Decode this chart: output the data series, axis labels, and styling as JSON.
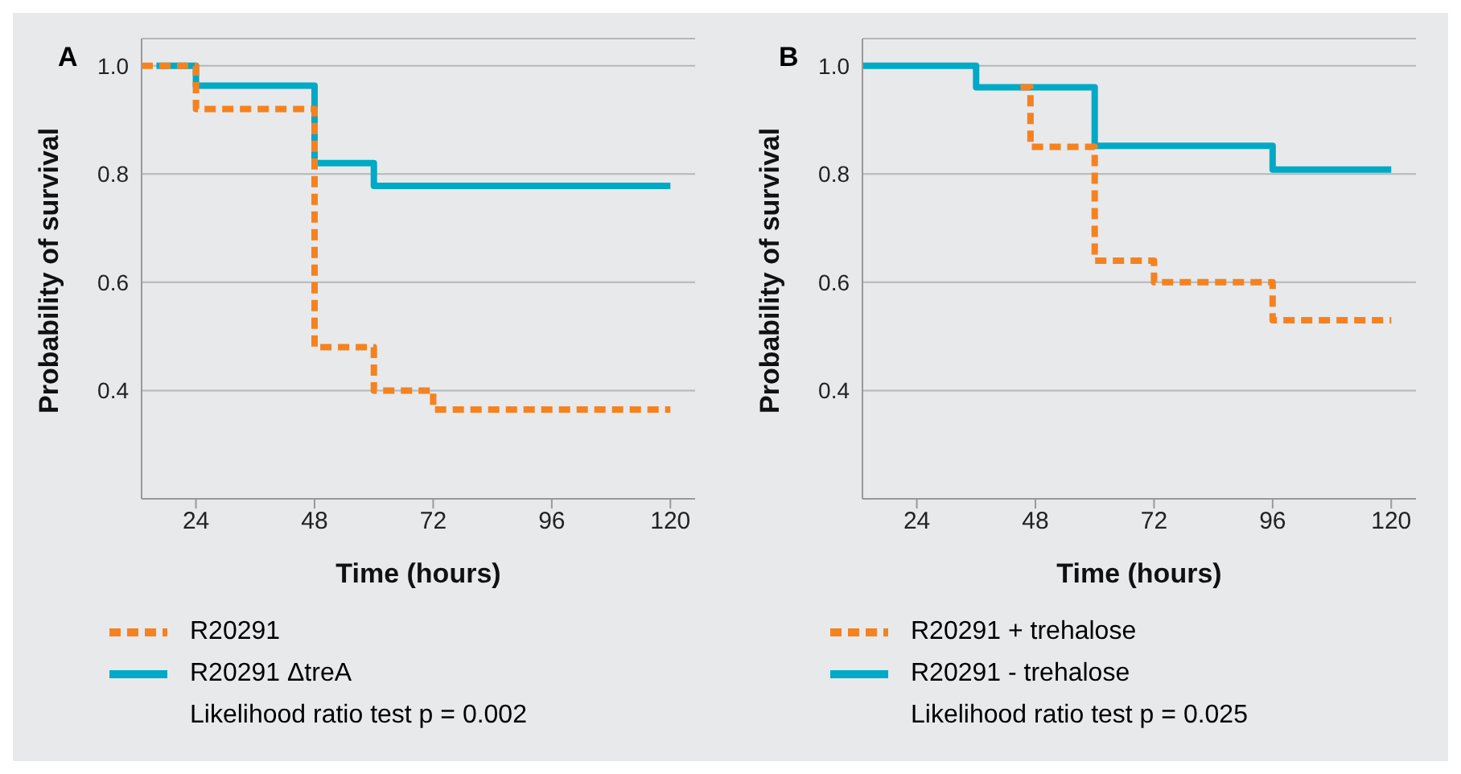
{
  "chart_data": [
    {
      "type": "step",
      "title": "A",
      "xlabel": "Time (hours)",
      "ylabel": "Probability of survival",
      "xlim": [
        13,
        125
      ],
      "xticks": [
        24,
        48,
        72,
        96,
        120
      ],
      "ylim": [
        0.2,
        1.05
      ],
      "yticks": [
        {
          "value": 0.4,
          "label": "0.4"
        },
        {
          "value": 0.6,
          "label": "0.6"
        },
        {
          "value": 0.8,
          "label": "0.8"
        },
        {
          "value": 1,
          "label": "1.0"
        }
      ],
      "grid": "y",
      "legend": "bottom",
      "series": [
        {
          "name": "R20291",
          "color": "#f5821f",
          "line_style": "dashed",
          "x": [
            13,
            24,
            48,
            60,
            72,
            120
          ],
          "values": [
            1.0,
            0.92,
            0.48,
            0.4,
            0.365,
            0.365
          ]
        },
        {
          "name": "R20291 ΔtreA",
          "color": "#00a9c5",
          "line_style": "solid",
          "x": [
            16,
            24,
            48,
            60,
            120
          ],
          "values": [
            1.0,
            0.963,
            0.82,
            0.778,
            0.778
          ]
        }
      ],
      "annotations": [
        "Likelihood ratio test p = 0.002"
      ]
    },
    {
      "type": "step",
      "title": "B",
      "xlabel": "Time (hours)",
      "ylabel": "Probability of survival",
      "xlim": [
        13,
        125
      ],
      "xticks": [
        24,
        48,
        72,
        96,
        120
      ],
      "ylim": [
        0.2,
        1.05
      ],
      "yticks": [
        {
          "value": 0.4,
          "label": "0.4"
        },
        {
          "value": 0.6,
          "label": "0.6"
        },
        {
          "value": 0.8,
          "label": "0.8"
        },
        {
          "value": 1,
          "label": "1.0"
        }
      ],
      "grid": "y",
      "legend": "bottom",
      "series": [
        {
          "name": "R20291 + trehalose",
          "color": "#f5821f",
          "line_style": "dashed",
          "x": [
            45,
            47,
            60,
            72,
            96,
            120
          ],
          "values": [
            0.96,
            0.85,
            0.64,
            0.6,
            0.53,
            0.53
          ]
        },
        {
          "name": "R20291 - trehalose",
          "color": "#00a9c5",
          "line_style": "solid",
          "x": [
            13,
            36,
            60,
            96,
            120
          ],
          "values": [
            1.0,
            0.96,
            0.852,
            0.808,
            0.808
          ]
        }
      ],
      "annotations": [
        "Likelihood ratio test p = 0.025"
      ]
    }
  ]
}
